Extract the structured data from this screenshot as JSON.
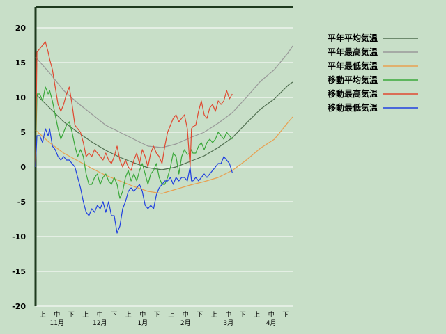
{
  "chart_data": {
    "type": "line",
    "title": "",
    "xlabel": "",
    "ylabel": "",
    "ylim": [
      -20,
      23
    ],
    "y_ticks": [
      20,
      15,
      10,
      5,
      0,
      -5,
      -10,
      -15,
      -20
    ],
    "x_period_labels": [
      "上",
      "中",
      "下",
      "上",
      "中",
      "下",
      "上",
      "中",
      "下",
      "上",
      "中",
      "下",
      "上",
      "中",
      "下",
      "上",
      "中",
      "下"
    ],
    "x_month_labels": [
      "11月",
      "12月",
      "1月",
      "2月",
      "3月",
      "4月"
    ],
    "grid": true,
    "legend_position": "top-right",
    "x_domain": [
      0,
      183
    ],
    "series": [
      {
        "name": "平年平均気温",
        "color": "#4f6e4f",
        "x": [
          0,
          10,
          20,
          30,
          40,
          50,
          60,
          70,
          80,
          90,
          100,
          110,
          120,
          130,
          140,
          150,
          160,
          170,
          180,
          183
        ],
        "values": [
          10.5,
          8.5,
          6.5,
          5.0,
          3.6,
          2.4,
          1.4,
          0.6,
          -0.1,
          -0.4,
          0.0,
          0.8,
          1.6,
          2.8,
          4.2,
          6.3,
          8.3,
          9.8,
          11.8,
          12.2
        ]
      },
      {
        "name": "平年最高気温",
        "color": "#999999",
        "x": [
          0,
          10,
          20,
          30,
          40,
          50,
          60,
          70,
          80,
          90,
          100,
          110,
          120,
          130,
          140,
          150,
          160,
          170,
          180,
          183
        ],
        "values": [
          15.8,
          13.5,
          11.0,
          9.2,
          7.6,
          6.0,
          5.0,
          4.0,
          3.0,
          2.8,
          3.3,
          4.2,
          5.0,
          6.3,
          7.8,
          10.0,
          12.3,
          14.0,
          16.5,
          17.4
        ]
      },
      {
        "name": "平年最低気温",
        "color": "#e8a050",
        "x": [
          0,
          10,
          20,
          30,
          40,
          50,
          60,
          70,
          80,
          90,
          100,
          110,
          120,
          130,
          140,
          150,
          160,
          170,
          180,
          183
        ],
        "values": [
          5.3,
          3.5,
          2.0,
          0.9,
          -0.2,
          -1.2,
          -2.0,
          -2.8,
          -3.5,
          -3.8,
          -3.2,
          -2.6,
          -2.1,
          -1.5,
          -0.5,
          1.0,
          2.7,
          4.0,
          6.5,
          7.2
        ]
      },
      {
        "name": "移動平均気温",
        "color": "#3aa83a",
        "x": [
          0,
          1,
          3,
          5,
          7,
          9,
          10,
          12,
          14,
          16,
          18,
          20,
          22,
          24,
          26,
          28,
          30,
          32,
          34,
          36,
          38,
          40,
          42,
          44,
          46,
          48,
          50,
          52,
          54,
          56,
          58,
          60,
          62,
          64,
          66,
          68,
          70,
          72,
          74,
          76,
          78,
          80,
          82,
          84,
          86,
          88,
          90,
          92,
          94,
          96,
          98,
          100,
          102,
          104,
          106,
          108,
          110,
          111,
          112,
          114,
          116,
          118,
          120,
          122,
          124,
          126,
          128,
          130,
          132,
          134,
          136,
          138,
          140
        ],
        "values": [
          0.0,
          10.5,
          10.5,
          9.5,
          11.5,
          10.5,
          11.0,
          9.5,
          7.5,
          5.5,
          4.0,
          5.0,
          6.0,
          6.5,
          5.0,
          3.0,
          1.5,
          2.5,
          1.5,
          -1.0,
          -2.5,
          -2.5,
          -1.5,
          -1.0,
          -2.5,
          -1.5,
          -1.0,
          -2.0,
          -2.5,
          -1.5,
          -2.5,
          -4.5,
          -3.5,
          -1.5,
          -0.5,
          -2.0,
          -1.0,
          -2.0,
          -0.5,
          0.5,
          -1.0,
          -2.5,
          -1.0,
          -0.5,
          0.5,
          -1.5,
          -2.5,
          -2.5,
          -1.5,
          0.0,
          2.0,
          1.5,
          -1.0,
          1.5,
          2.5,
          1.8,
          2.0,
          2.5,
          2.0,
          2.0,
          3.0,
          3.5,
          2.5,
          3.5,
          4.0,
          3.5,
          4.0,
          5.0,
          4.5,
          4.0,
          5.0,
          4.5,
          4.0
        ]
      },
      {
        "name": "移動最高気温",
        "color": "#e04830",
        "x": [
          0,
          1,
          3,
          5,
          7,
          9,
          10,
          12,
          14,
          16,
          18,
          20,
          22,
          24,
          26,
          28,
          30,
          32,
          34,
          36,
          38,
          40,
          42,
          44,
          46,
          48,
          50,
          52,
          54,
          56,
          58,
          60,
          62,
          64,
          66,
          68,
          70,
          72,
          74,
          76,
          78,
          80,
          82,
          84,
          86,
          88,
          90,
          92,
          94,
          96,
          98,
          100,
          102,
          104,
          106,
          108,
          110,
          111,
          112,
          114,
          116,
          118,
          120,
          122,
          124,
          126,
          128,
          130,
          132,
          134,
          136,
          138,
          140
        ],
        "values": [
          0.0,
          16.5,
          17.0,
          17.5,
          18.0,
          16.5,
          15.5,
          14.0,
          11.5,
          9.0,
          8.0,
          9.0,
          10.5,
          11.5,
          9.0,
          6.0,
          5.5,
          5.0,
          3.5,
          1.5,
          2.0,
          1.5,
          2.5,
          2.0,
          1.5,
          1.0,
          2.0,
          1.0,
          0.5,
          1.5,
          3.0,
          1.0,
          0.0,
          1.0,
          0.0,
          -0.5,
          1.0,
          2.0,
          0.5,
          2.5,
          1.5,
          0.0,
          2.0,
          3.0,
          2.0,
          1.5,
          0.5,
          3.0,
          5.0,
          6.0,
          7.0,
          7.5,
          6.5,
          7.0,
          7.5,
          5.5,
          0.0,
          5.5,
          5.8,
          6.0,
          8.0,
          9.5,
          7.5,
          7.0,
          8.5,
          9.0,
          8.0,
          9.5,
          9.0,
          9.5,
          11.0,
          9.8,
          10.5
        ]
      },
      {
        "name": "移動最低気温",
        "color": "#2040e0",
        "x": [
          0,
          1,
          3,
          5,
          7,
          9,
          10,
          12,
          14,
          16,
          18,
          20,
          22,
          24,
          26,
          28,
          30,
          32,
          34,
          36,
          38,
          40,
          42,
          44,
          46,
          48,
          50,
          52,
          54,
          56,
          58,
          60,
          62,
          64,
          66,
          68,
          70,
          72,
          74,
          76,
          78,
          80,
          82,
          84,
          86,
          88,
          90,
          92,
          94,
          96,
          98,
          100,
          102,
          104,
          106,
          108,
          110,
          111,
          112,
          114,
          116,
          118,
          120,
          122,
          124,
          126,
          128,
          130,
          132,
          134,
          136,
          138,
          140
        ],
        "values": [
          0.0,
          4.5,
          4.5,
          3.5,
          5.5,
          4.5,
          5.5,
          3.0,
          2.5,
          1.5,
          1.0,
          1.5,
          1.0,
          1.0,
          0.5,
          0.0,
          -1.5,
          -3.0,
          -5.0,
          -6.5,
          -7.0,
          -6.0,
          -6.5,
          -5.5,
          -6.0,
          -5.0,
          -6.5,
          -5.0,
          -7.0,
          -7.0,
          -9.5,
          -8.5,
          -6.0,
          -5.0,
          -3.5,
          -3.0,
          -3.5,
          -3.0,
          -2.5,
          -3.5,
          -5.5,
          -6.0,
          -5.5,
          -6.0,
          -4.0,
          -3.0,
          -2.5,
          -2.0,
          -2.0,
          -1.5,
          -2.5,
          -1.5,
          -2.0,
          -1.5,
          -1.5,
          -2.0,
          0.0,
          -2.0,
          -2.0,
          -1.5,
          -2.0,
          -1.5,
          -1.0,
          -1.5,
          -1.0,
          -0.5,
          0.0,
          0.5,
          0.5,
          1.5,
          1.0,
          0.5,
          -0.8
        ]
      }
    ]
  }
}
